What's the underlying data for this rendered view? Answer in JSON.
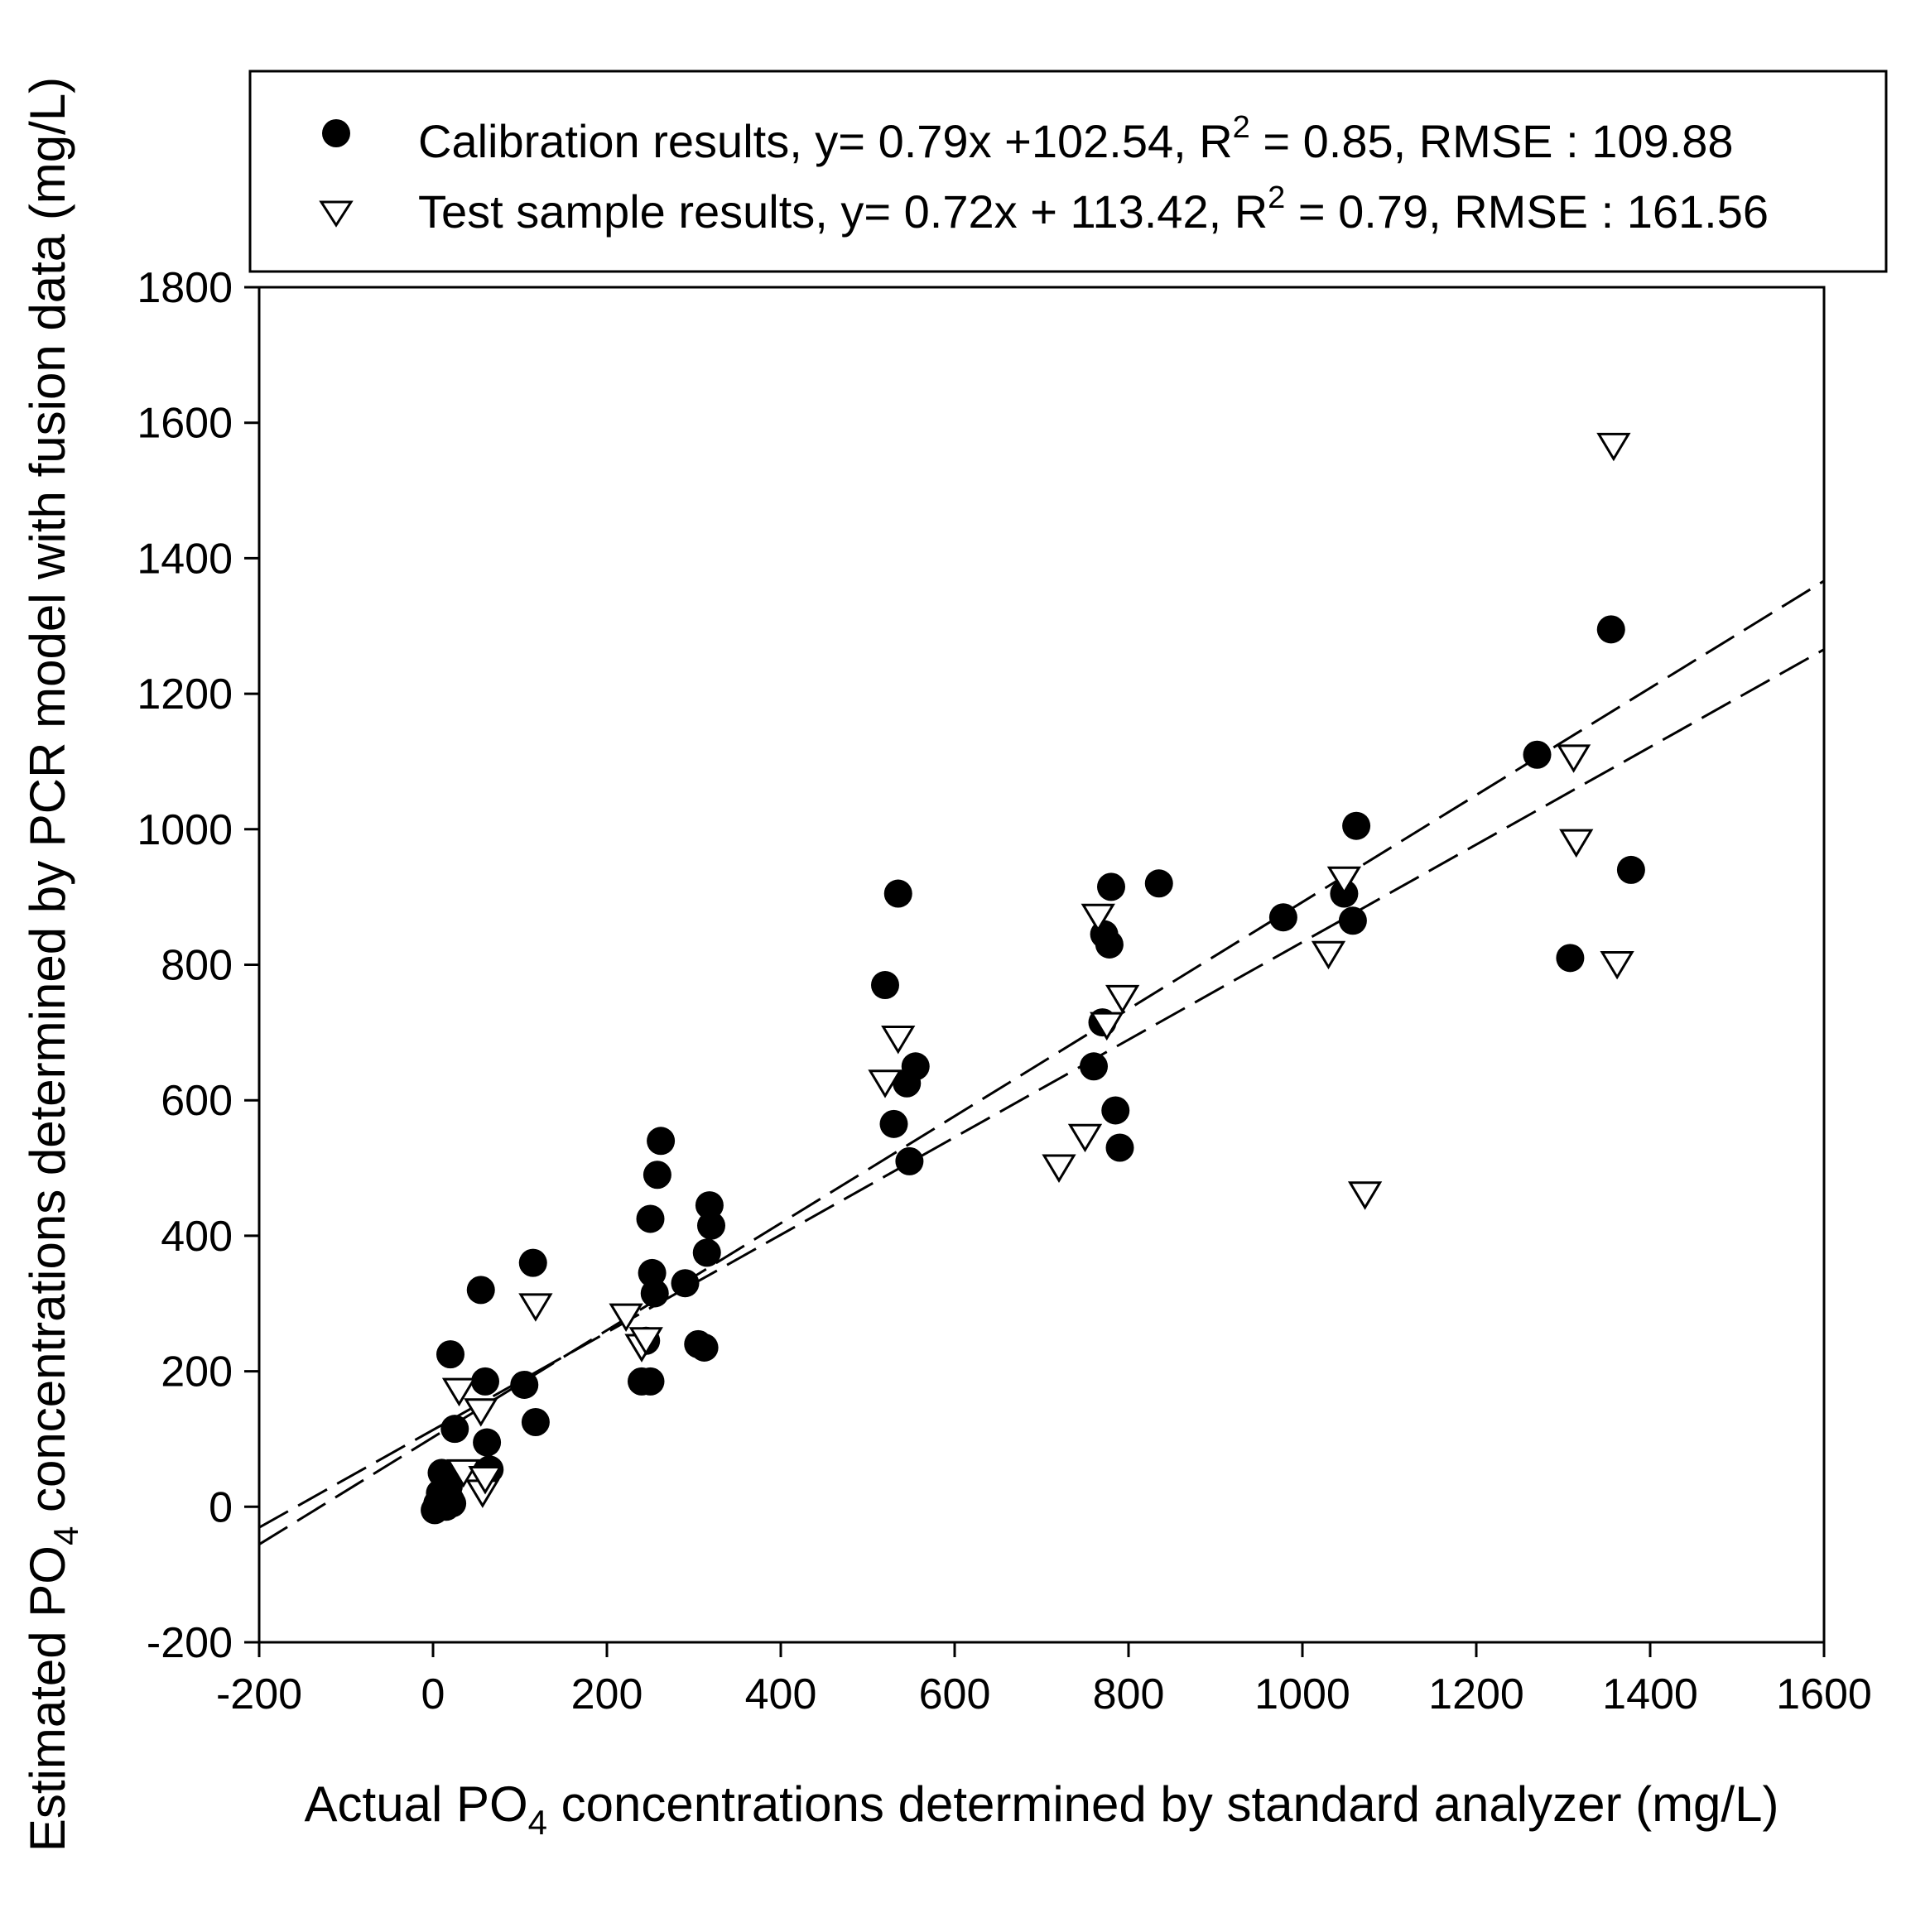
{
  "chart_data": {
    "type": "scatter",
    "xlabel": {
      "pre": "Actual PO",
      "sub": "4",
      "post": " concentrations determined by standard analyzer (mg/L)"
    },
    "ylabel": {
      "pre": "Estimated PO",
      "sub": "4",
      "post": " concentrations determined by PCR model with fusion data (mg/L)"
    },
    "xlim": [
      -200,
      1600
    ],
    "ylim": [
      -200,
      1800
    ],
    "xticks": [
      "-200",
      "0",
      "200",
      "400",
      "600",
      "800",
      "1000",
      "1200",
      "1400",
      "1600"
    ],
    "yticks": [
      "-200",
      "0",
      "200",
      "400",
      "600",
      "800",
      "1000",
      "1200",
      "1400",
      "1600",
      "1800"
    ],
    "grid": false,
    "legend_position": "top",
    "series": [
      {
        "name": "Calibration results",
        "marker": "filled-circle",
        "color": "#000000",
        "legend": {
          "pre": "Calibration results, y= 0.79x +102.54, R",
          "sup": "2",
          "post": " = 0.85, RMSE : 109.88"
        },
        "fit": {
          "slope": 0.79,
          "intercept": 102.54
        },
        "points": [
          [
            2,
            -5
          ],
          [
            5,
            5
          ],
          [
            8,
            20
          ],
          [
            10,
            50
          ],
          [
            12,
            10
          ],
          [
            15,
            0
          ],
          [
            18,
            30
          ],
          [
            20,
            10
          ],
          [
            22,
            5
          ],
          [
            20,
            225
          ],
          [
            25,
            115
          ],
          [
            55,
            320
          ],
          [
            60,
            185
          ],
          [
            62,
            95
          ],
          [
            65,
            55
          ],
          [
            105,
            180
          ],
          [
            115,
            360
          ],
          [
            118,
            125
          ],
          [
            240,
            185
          ],
          [
            245,
            245
          ],
          [
            250,
            185
          ],
          [
            250,
            425
          ],
          [
            252,
            345
          ],
          [
            255,
            315
          ],
          [
            258,
            490
          ],
          [
            262,
            540
          ],
          [
            290,
            330
          ],
          [
            305,
            240
          ],
          [
            312,
            235
          ],
          [
            315,
            375
          ],
          [
            318,
            445
          ],
          [
            320,
            415
          ],
          [
            520,
            770
          ],
          [
            530,
            565
          ],
          [
            535,
            905
          ],
          [
            545,
            625
          ],
          [
            548,
            510
          ],
          [
            555,
            650
          ],
          [
            760,
            650
          ],
          [
            770,
            715
          ],
          [
            772,
            845
          ],
          [
            778,
            830
          ],
          [
            780,
            915
          ],
          [
            785,
            585
          ],
          [
            790,
            530
          ],
          [
            835,
            920
          ],
          [
            978,
            870
          ],
          [
            1048,
            905
          ],
          [
            1058,
            865
          ],
          [
            1062,
            1005
          ],
          [
            1270,
            1110
          ],
          [
            1308,
            810
          ],
          [
            1355,
            1295
          ],
          [
            1378,
            940
          ]
        ]
      },
      {
        "name": "Test sample results",
        "marker": "open-triangle-down",
        "color": "#000000",
        "legend": {
          "pre": "Test sample results, y= 0.72x + 113.42, R",
          "sup": "2",
          "post": " = 0.79, RMSE : 161.56"
        },
        "fit": {
          "slope": 0.72,
          "intercept": 113.42
        },
        "points": [
          [
            30,
            170
          ],
          [
            35,
            50
          ],
          [
            55,
            140
          ],
          [
            57,
            20
          ],
          [
            60,
            40
          ],
          [
            118,
            295
          ],
          [
            222,
            280
          ],
          [
            240,
            235
          ],
          [
            245,
            245
          ],
          [
            520,
            625
          ],
          [
            535,
            690
          ],
          [
            720,
            500
          ],
          [
            750,
            545
          ],
          [
            765,
            870
          ],
          [
            775,
            710
          ],
          [
            793,
            750
          ],
          [
            1030,
            815
          ],
          [
            1048,
            925
          ],
          [
            1072,
            460
          ],
          [
            1312,
            1105
          ],
          [
            1315,
            980
          ],
          [
            1358,
            1565
          ],
          [
            1362,
            800
          ]
        ]
      }
    ]
  }
}
